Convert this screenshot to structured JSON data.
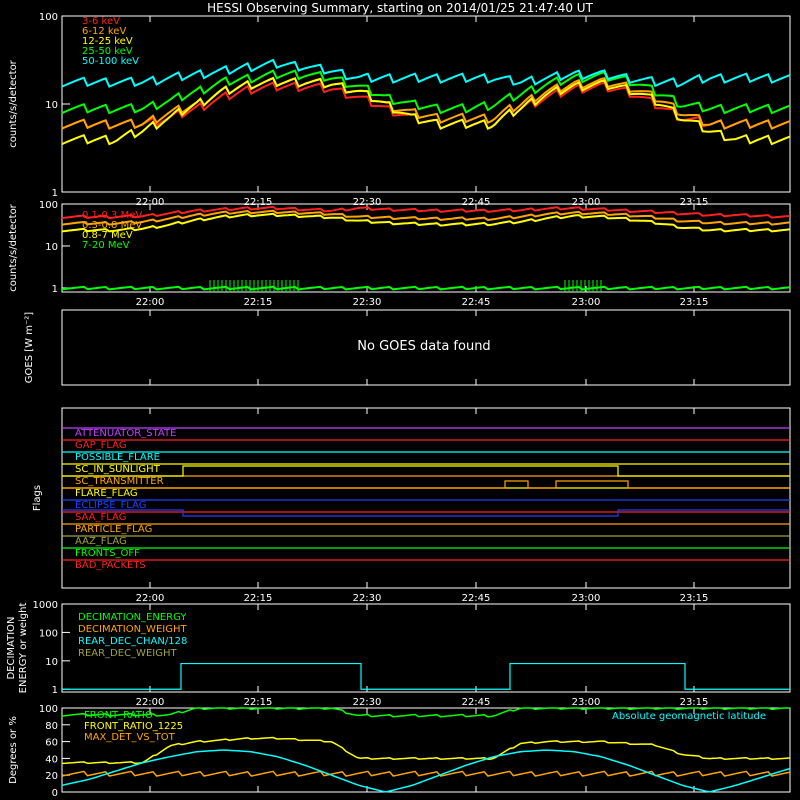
{
  "title": "HESSI Observing Summary, starting on 2014/01/25 21:47:40 UT",
  "x_ticks": [
    "22:00",
    "22:15",
    "22:30",
    "22:45",
    "23:00",
    "23:15"
  ],
  "chart_data": [
    {
      "type": "line",
      "ylabel": "counts/s/detector",
      "yscale": "log",
      "ylim": [
        1,
        100
      ],
      "y_ticks": [
        "1",
        "10",
        "100"
      ],
      "x": "time (UT)",
      "series": [
        {
          "name": "3-6 keV",
          "color": "#ff2020",
          "values": [
            6,
            6,
            6,
            6,
            7,
            9,
            12,
            15,
            16,
            16,
            15,
            12,
            9,
            7,
            6,
            6,
            6,
            9,
            12,
            15,
            16,
            14,
            10,
            7,
            6,
            6,
            6,
            6
          ]
        },
        {
          "name": "6-12 keV",
          "color": "#ffa500",
          "values": [
            6,
            6,
            6,
            6,
            8,
            10,
            14,
            17,
            18,
            18,
            17,
            14,
            10,
            8,
            7,
            7,
            7,
            10,
            14,
            17,
            18,
            16,
            12,
            8,
            6,
            6,
            6,
            6
          ]
        },
        {
          "name": "12-25 keV",
          "color": "#ffff00",
          "values": [
            4,
            4,
            4,
            5,
            7,
            10,
            14,
            17,
            18,
            18,
            17,
            14,
            10,
            7,
            6,
            6,
            6,
            9,
            13,
            16,
            17,
            15,
            11,
            7,
            5,
            4,
            4,
            4
          ]
        },
        {
          "name": "25-50 keV",
          "color": "#00ff00",
          "values": [
            9,
            9,
            9,
            9,
            11,
            14,
            18,
            20,
            22,
            22,
            20,
            16,
            12,
            10,
            9,
            9,
            10,
            13,
            17,
            20,
            21,
            19,
            14,
            10,
            9,
            9,
            9,
            9
          ]
        },
        {
          "name": "50-100 keV",
          "color": "#00ffff",
          "values": [
            18,
            18,
            18,
            18,
            20,
            22,
            24,
            27,
            29,
            27,
            24,
            20,
            20,
            20,
            20,
            20,
            20,
            18,
            20,
            22,
            22,
            20,
            18,
            18,
            20,
            20,
            20,
            20
          ]
        }
      ]
    },
    {
      "type": "line",
      "ylabel": "counts/s/detector",
      "yscale": "log",
      "ylim": [
        0.8,
        100
      ],
      "y_ticks": [
        "1",
        "10",
        "100"
      ],
      "series": [
        {
          "name": "0.1-0.3 MeV",
          "color": "#ff2020",
          "values": [
            50,
            50,
            50,
            52,
            60,
            70,
            75,
            80,
            80,
            75,
            70,
            80,
            75,
            72,
            70,
            70,
            70,
            72,
            78,
            80,
            75,
            70,
            65,
            60,
            55,
            55,
            52,
            50
          ]
        },
        {
          "name": "0.3-0.8 MeV",
          "color": "#ffa500",
          "values": [
            35,
            35,
            35,
            38,
            45,
            55,
            62,
            65,
            65,
            62,
            58,
            50,
            48,
            46,
            45,
            45,
            45,
            50,
            58,
            62,
            60,
            55,
            48,
            40,
            36,
            35,
            35,
            35
          ]
        },
        {
          "name": "0.8-7 MeV",
          "color": "#ffff00",
          "values": [
            24,
            24,
            24,
            26,
            32,
            42,
            50,
            55,
            55,
            52,
            48,
            40,
            36,
            34,
            33,
            33,
            34,
            38,
            46,
            52,
            50,
            44,
            36,
            28,
            24,
            24,
            24,
            24
          ]
        },
        {
          "name": "7-20 MeV",
          "color": "#00ff00",
          "values": [
            1,
            1,
            1,
            1,
            1,
            1,
            1,
            1,
            1,
            1,
            1,
            1,
            1,
            1,
            1,
            1,
            1,
            1,
            1,
            1,
            1,
            1,
            1,
            1,
            1,
            1,
            1,
            1
          ]
        }
      ]
    },
    {
      "type": "line",
      "ylabel": "GOES [W m⁻²]",
      "message": "No GOES data found",
      "series": []
    },
    {
      "type": "line",
      "ylabel": "Flags",
      "series": [
        {
          "name": "ATTENUATOR_STATE",
          "color": "#c040ff"
        },
        {
          "name": "GAP_FLAG",
          "color": "#ff2020"
        },
        {
          "name": "POSSIBLE_FLARE",
          "color": "#00ffff"
        },
        {
          "name": "SC_IN_SUNLIGHT",
          "color": "#ffff00"
        },
        {
          "name": "SC_TRANSMITTER",
          "color": "#ffa500"
        },
        {
          "name": "FLARE_FLAG",
          "color": "#ffff00"
        },
        {
          "name": "ECLIPSE_FLAG",
          "color": "#2040ff"
        },
        {
          "name": "SAA_FLAG",
          "color": "#ff2020"
        },
        {
          "name": "PARTICLE_FLAG",
          "color": "#ffa500"
        },
        {
          "name": "AAZ_FLAG",
          "color": "#a0a040"
        },
        {
          "name": "FRONTS_OFF",
          "color": "#00ff00"
        },
        {
          "name": "BAD_PACKETS",
          "color": "#ff2020"
        }
      ]
    },
    {
      "type": "line",
      "ylabel": "DECIMATION ENERGY or weight",
      "yscale": "log",
      "ylim": [
        0.8,
        1000
      ],
      "y_ticks": [
        "1",
        "10",
        "100",
        "1000"
      ],
      "series": [
        {
          "name": "DECIMATION_ENERGY",
          "color": "#00ff00"
        },
        {
          "name": "DECIMATION_WEIGHT",
          "color": "#ffa500"
        },
        {
          "name": "REAR_DEC_CHAN/128",
          "color": "#00ffff"
        },
        {
          "name": "REAR_DEC_WEIGHT",
          "color": "#a0a040"
        }
      ]
    },
    {
      "type": "line",
      "ylabel": "Degrees or %",
      "ylim": [
        0,
        100
      ],
      "y_ticks": [
        "0",
        "20",
        "40",
        "60",
        "80",
        "100"
      ],
      "series": [
        {
          "name": "FRONT_RATIO",
          "color": "#00ff00",
          "values": [
            92,
            92,
            92,
            92,
            92,
            100,
            100,
            100,
            100,
            100,
            100,
            91,
            91,
            91,
            91,
            91,
            91,
            100,
            100,
            100,
            100,
            100,
            100,
            100,
            100,
            100,
            100,
            100
          ]
        },
        {
          "name": "FRONT_RATIO_1225",
          "color": "#ffff00",
          "values": [
            35,
            35,
            35,
            35,
            55,
            60,
            62,
            64,
            64,
            62,
            60,
            40,
            40,
            40,
            40,
            40,
            40,
            58,
            60,
            60,
            60,
            58,
            56,
            45,
            40,
            40,
            40,
            40
          ]
        },
        {
          "name": "MAX_DET_VS_TOT",
          "color": "#ffa500",
          "values": [
            22,
            22,
            22,
            22,
            22,
            22,
            22,
            22,
            22,
            22,
            22,
            22,
            22,
            22,
            22,
            22,
            22,
            22,
            22,
            22,
            22,
            22,
            22,
            22,
            22,
            22,
            22,
            22
          ]
        },
        {
          "name": "Absolute geomagnetic latitude",
          "color": "#00ffff",
          "values": [
            8,
            15,
            25,
            35,
            42,
            48,
            50,
            48,
            42,
            32,
            20,
            8,
            0,
            8,
            20,
            32,
            42,
            48,
            50,
            48,
            42,
            32,
            20,
            8,
            0,
            8,
            18,
            28
          ]
        }
      ]
    }
  ]
}
